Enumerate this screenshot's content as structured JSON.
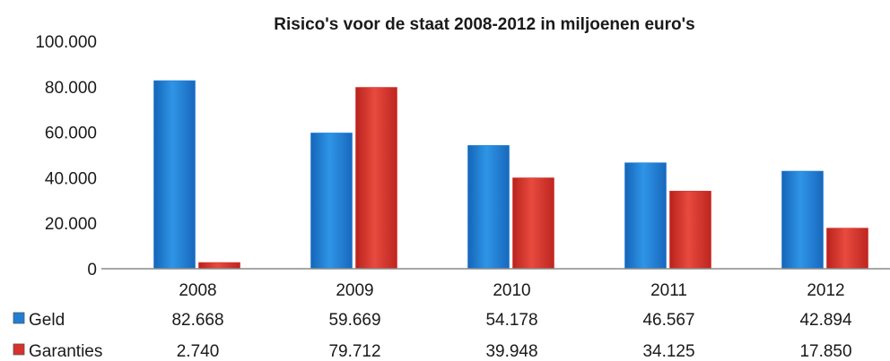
{
  "chart_data": {
    "type": "bar",
    "title": "Risico's voor de staat 2008-2012 in miljoenen euro's",
    "categories": [
      "2008",
      "2009",
      "2010",
      "2011",
      "2012"
    ],
    "series": [
      {
        "name": "Geld",
        "color": "#1f7fd6",
        "values": [
          82668,
          59669,
          54178,
          46567,
          42894
        ],
        "labels": [
          "82.668",
          "59.669",
          "54.178",
          "46.567",
          "42.894"
        ]
      },
      {
        "name": "Garanties",
        "color": "#d9312b",
        "values": [
          2740,
          79712,
          39948,
          34125,
          17850
        ],
        "labels": [
          "2.740",
          "79.712",
          "39.948",
          "34.125",
          "17.850"
        ]
      }
    ],
    "ylim": [
      0,
      100000
    ],
    "yticks": [
      0,
      20000,
      40000,
      60000,
      80000,
      100000
    ],
    "ytick_labels": [
      "0",
      "20.000",
      "40.000",
      "60.000",
      "80.000",
      "100.000"
    ],
    "grid": false,
    "legend": "data-table-below"
  }
}
